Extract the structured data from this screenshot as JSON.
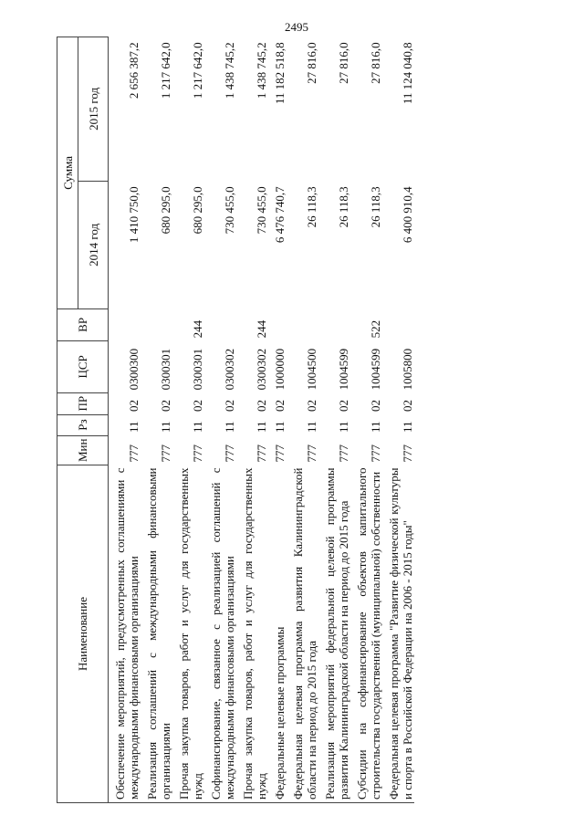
{
  "page_number": "2495",
  "header": {
    "name": "Наименование",
    "min": "Мин",
    "rz": "Рз",
    "pr": "ПР",
    "csr": "ЦСР",
    "vr": "ВР",
    "sum": "Сумма",
    "y2014": "2014 год",
    "y2015": "2015 год"
  },
  "rows": [
    {
      "name": "Обеспечение мероприятий, предусмотренных соглашениями с международными финансовыми организациями",
      "min": "777",
      "rz": "11",
      "pr": "02",
      "csr": "0300300",
      "vr": "",
      "y2014": "1 410 750,0",
      "y2015": "2 656 387,2"
    },
    {
      "name": "Реализация соглашений с международными финансовыми организациями",
      "min": "777",
      "rz": "11",
      "pr": "02",
      "csr": "0300301",
      "vr": "",
      "y2014": "680 295,0",
      "y2015": "1 217 642,0"
    },
    {
      "name": "Прочая закупка товаров, работ и услуг для государственных нужд",
      "min": "777",
      "rz": "11",
      "pr": "02",
      "csr": "0300301",
      "vr": "244",
      "y2014": "680 295,0",
      "y2015": "1 217 642,0"
    },
    {
      "name": "Софинансирование, связанное с реализацией соглашений с международными финансовыми организациями",
      "min": "777",
      "rz": "11",
      "pr": "02",
      "csr": "0300302",
      "vr": "",
      "y2014": "730 455,0",
      "y2015": "1 438 745,2"
    },
    {
      "name": "Прочая закупка товаров, работ и услуг для государственных нужд",
      "min": "777",
      "rz": "11",
      "pr": "02",
      "csr": "0300302",
      "vr": "244",
      "y2014": "730 455,0",
      "y2015": "1 438 745,2"
    },
    {
      "name": "Федеральные целевые программы",
      "min": "777",
      "rz": "11",
      "pr": "02",
      "csr": "1000000",
      "vr": "",
      "y2014": "6 476 740,7",
      "y2015": "11 182 518,8"
    },
    {
      "name": "Федеральная целевая программа развития Калининградской области на период до 2015 года",
      "min": "777",
      "rz": "11",
      "pr": "02",
      "csr": "1004500",
      "vr": "",
      "y2014": "26 118,3",
      "y2015": "27 816,0"
    },
    {
      "name": "Реализация мероприятий федеральной целевой программы развития Калининградской области на период до 2015 года",
      "min": "777",
      "rz": "11",
      "pr": "02",
      "csr": "1004599",
      "vr": "",
      "y2014": "26 118,3",
      "y2015": "27 816,0"
    },
    {
      "name": "Субсидии на софинансирование объектов капитального строительства государственной (муниципальной) собственности",
      "min": "777",
      "rz": "11",
      "pr": "02",
      "csr": "1004599",
      "vr": "522",
      "y2014": "26 118,3",
      "y2015": "27 816,0"
    },
    {
      "name": "Федеральная целевая программа \"Развитие физической культуры и спорта в Российской Федерации на 2006 - 2015 годы\"",
      "min": "777",
      "rz": "11",
      "pr": "02",
      "csr": "1005800",
      "vr": "",
      "y2014": "6 400 910,4",
      "y2015": "11 124 040,8"
    }
  ]
}
